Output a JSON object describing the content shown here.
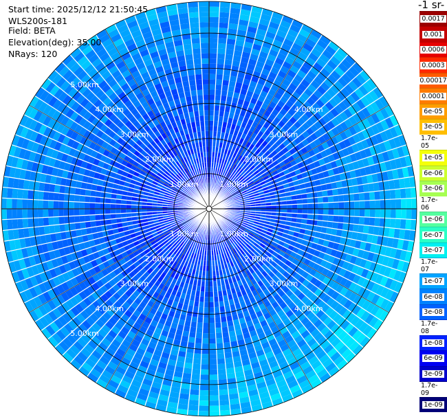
{
  "info": {
    "start_time": "Start time: 2025/12/12 21:50:45",
    "instrument": "WLS200s-181",
    "field": "Field: BETA",
    "elevation": "Elevation(deg): 35.00",
    "nrays": "NRays: 120"
  },
  "colorbar": {
    "unit_label": "-1 sr-",
    "ticks": [
      "0.0017",
      "0.001",
      "0.0006",
      "0.0003",
      "0.00017",
      "0.0001",
      "6e-05",
      "3e-05",
      "1.7e-05",
      "1e-05",
      "6e-06",
      "3e-06",
      "1.7e-06",
      "1e-06",
      "6e-07",
      "3e-07",
      "1.7e-07",
      "1e-07",
      "6e-08",
      "3e-08",
      "1.7e-08",
      "1e-08",
      "6e-09",
      "3e-09",
      "1.7e-09",
      "1e-09"
    ],
    "colors": [
      "#9b0000",
      "#c40000",
      "#e60000",
      "#ff2a00",
      "#ff5a00",
      "#ff7c00",
      "#ff9d00",
      "#ffbe00",
      "#ffe000",
      "#f4ff0a",
      "#cdff2e",
      "#a6ff52",
      "#7dff79",
      "#55ff9f",
      "#2affc6",
      "#00f0f0",
      "#00c8ff",
      "#00a4ff",
      "#0082ff",
      "#0062ff",
      "#0042ff",
      "#0022ff",
      "#0000f2",
      "#0000cc",
      "#00009f",
      "#000077"
    ]
  },
  "chart_data": {
    "type": "heatmap",
    "projection": "polar PPI",
    "field": "BETA",
    "n_rays": 120,
    "elevation_deg": 35.0,
    "range_rings": [
      "1.00km",
      "2.00km",
      "3.00km",
      "4.00km",
      "5.00km"
    ],
    "range_ring_values_km": [
      1,
      2,
      3,
      4,
      5
    ],
    "max_range_km": 5.9,
    "color_scale": "log",
    "value_range": [
      1e-09,
      0.0017
    ],
    "typical_values": {
      "near_center": "3e-09 to 1e-08",
      "mid_range": "3e-08 to 1e-07",
      "outer_range": "6e-08 to 1.7e-07"
    }
  }
}
